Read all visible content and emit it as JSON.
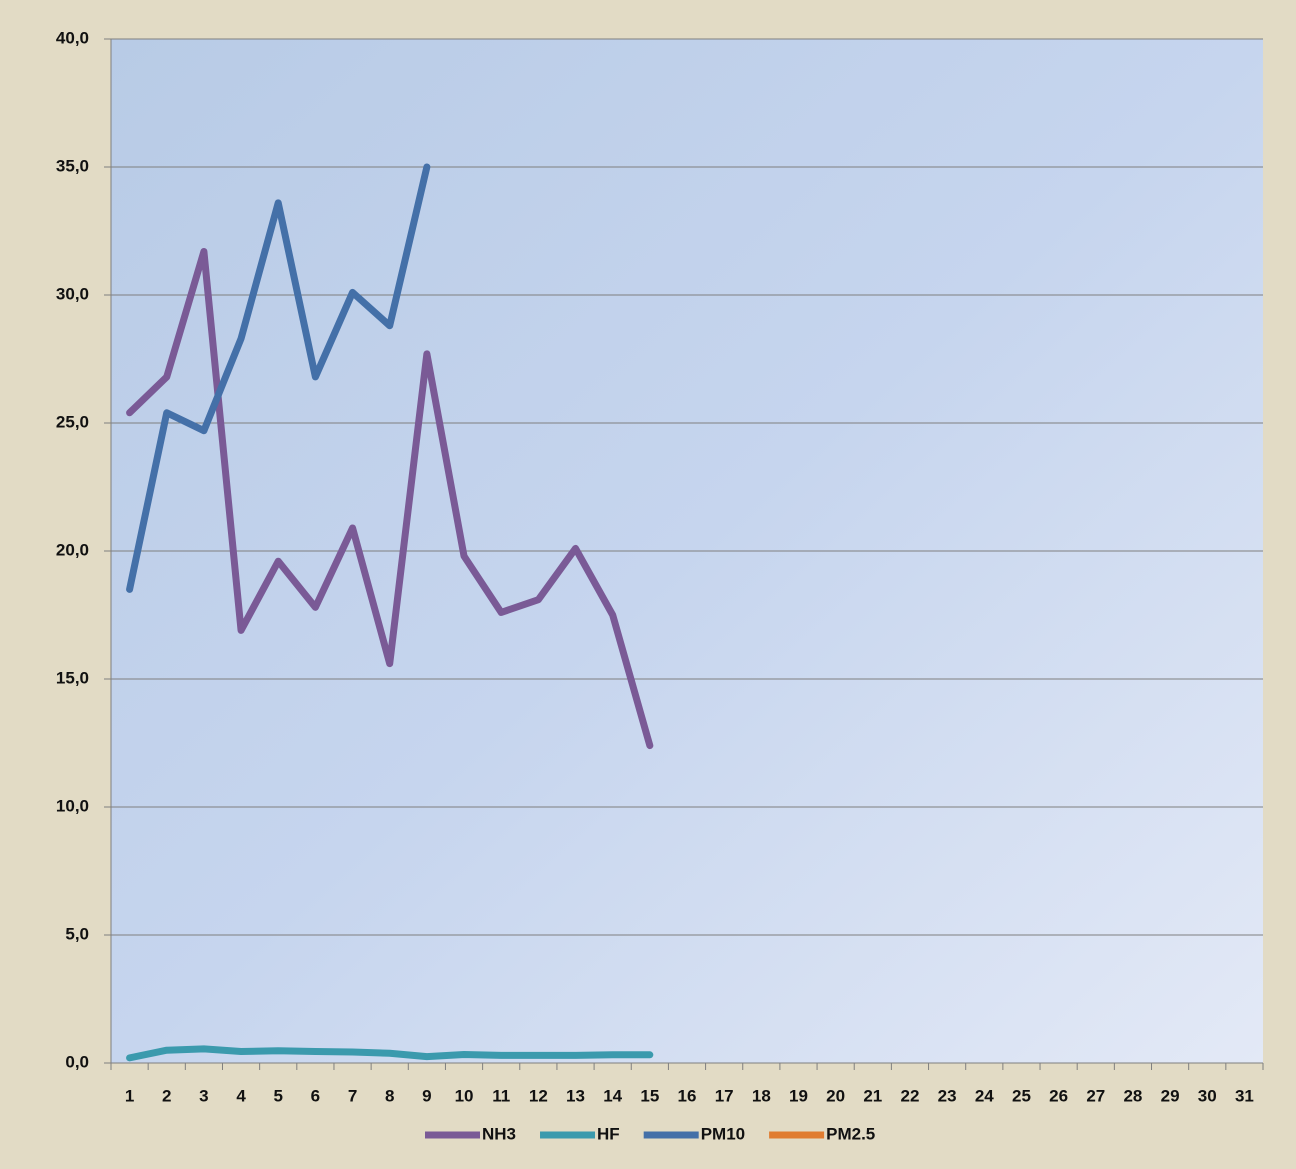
{
  "chart_data": {
    "type": "line",
    "categories": [
      1,
      2,
      3,
      4,
      5,
      6,
      7,
      8,
      9,
      10,
      11,
      12,
      13,
      14,
      15,
      16,
      17,
      18,
      19,
      20,
      21,
      22,
      23,
      24,
      25,
      26,
      27,
      28,
      29,
      30,
      31
    ],
    "series": [
      {
        "name": "NH3",
        "color": "#7a5a96",
        "values": [
          25.4,
          26.8,
          31.7,
          16.9,
          19.6,
          17.8,
          20.9,
          15.6,
          27.7,
          19.8,
          17.6,
          18.1,
          20.1,
          17.5,
          12.4,
          null,
          null,
          null,
          null,
          null,
          null,
          null,
          null,
          null,
          null,
          null,
          null,
          null,
          null,
          null,
          null
        ]
      },
      {
        "name": "HF",
        "color": "#3b9aad",
        "values": [
          0.2,
          0.5,
          0.55,
          0.45,
          0.48,
          0.45,
          0.43,
          0.38,
          0.25,
          0.33,
          0.3,
          0.3,
          0.3,
          0.32,
          0.32,
          null,
          null,
          null,
          null,
          null,
          null,
          null,
          null,
          null,
          null,
          null,
          null,
          null,
          null,
          null,
          null
        ]
      },
      {
        "name": "PM10",
        "color": "#4470a8",
        "values": [
          18.5,
          25.4,
          24.7,
          28.3,
          33.6,
          26.8,
          30.1,
          28.8,
          35.0,
          null,
          null,
          null,
          null,
          null,
          null,
          null,
          null,
          null,
          null,
          null,
          null,
          null,
          null,
          null,
          null,
          null,
          null,
          null,
          null,
          null,
          null
        ]
      },
      {
        "name": "PM2.5",
        "color": "#e07c30",
        "values": [
          null,
          null,
          null,
          null,
          null,
          null,
          null,
          null,
          null,
          null,
          null,
          null,
          null,
          null,
          null,
          null,
          null,
          null,
          null,
          null,
          null,
          null,
          null,
          null,
          null,
          null,
          null,
          null,
          null,
          null,
          null
        ]
      }
    ],
    "ylim": [
      0,
      40
    ],
    "yticks": [
      {
        "value": 0,
        "label": "0,0"
      },
      {
        "value": 5,
        "label": "5,0"
      },
      {
        "value": 10,
        "label": "10,0"
      },
      {
        "value": 15,
        "label": "15,0"
      },
      {
        "value": 20,
        "label": "20,0"
      },
      {
        "value": 25,
        "label": "25,0"
      },
      {
        "value": 30,
        "label": "30,0"
      },
      {
        "value": 35,
        "label": "35,0"
      },
      {
        "value": 40,
        "label": "40,0"
      }
    ],
    "grid": true,
    "legend": "bottom"
  }
}
